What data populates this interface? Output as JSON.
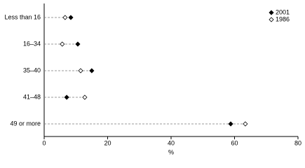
{
  "chart_data": {
    "type": "dot",
    "x_label": "%",
    "categories": [
      "Less than 16",
      "16–34",
      "35–40",
      "41–48",
      "49 or more"
    ],
    "series": [
      {
        "name": "2001",
        "color": "#000000",
        "filled": true,
        "values": [
          8.4,
          10.6,
          15.0,
          7.1,
          58.8
        ]
      },
      {
        "name": "1986",
        "color": "#000000",
        "filled": false,
        "values": [
          6.6,
          5.7,
          11.5,
          12.8,
          63.4
        ]
      }
    ],
    "xlim": [
      0,
      80
    ],
    "xticks": [
      0,
      20,
      40,
      60,
      80
    ],
    "grid": false,
    "legend": "top-right"
  }
}
